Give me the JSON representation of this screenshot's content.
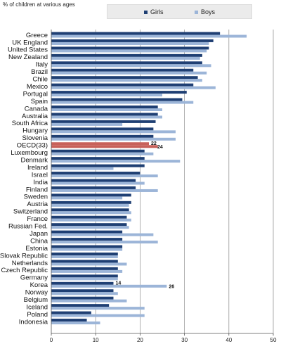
{
  "chart_data": {
    "type": "bar",
    "orientation": "horizontal",
    "subtitle": "% of children at various ages",
    "categories": [
      "Greece",
      "UK England",
      "United States",
      "New Zealand",
      "Italy",
      "Brazil",
      "Chile",
      "Mexico",
      "Portugal",
      "Spain",
      "Canada",
      "Australia",
      "South Africa",
      "Hungary",
      "Slovenia",
      "OECD(33)",
      "Luxembourg",
      "Denmark",
      "Ireland",
      "Israel",
      "India",
      "Finland",
      "Sweden",
      "Austria",
      "Switzerland",
      "France",
      "Russian Fed.",
      "Japan",
      "China",
      "Estonia",
      "Slovak Republic",
      "Netherlands",
      "Czech Republic",
      "Germany",
      "Korea",
      "Norway",
      "Belgium",
      "Iceland",
      "Poland",
      "Indonesia"
    ],
    "series": [
      {
        "name": "Girls",
        "color": "#1f3f73",
        "values": [
          38,
          36.5,
          35.5,
          34,
          34,
          32,
          33,
          32,
          30.5,
          29.5,
          24,
          24,
          23.5,
          23,
          23,
          22,
          21,
          21,
          21,
          20,
          19,
          19,
          18,
          18,
          17.5,
          17,
          17,
          16,
          16,
          16,
          15,
          15,
          15,
          15,
          14,
          14,
          14,
          13,
          9,
          8
        ]
      },
      {
        "name": "Boys",
        "color": "#9cb5d8",
        "values": [
          44,
          35.5,
          35,
          33.5,
          36,
          35,
          34,
          37,
          25,
          32,
          25,
          25,
          16,
          28,
          28,
          24,
          23,
          29,
          14,
          24,
          21,
          24,
          16,
          17.5,
          18,
          18,
          17.5,
          23,
          24,
          16,
          15,
          17,
          16,
          15,
          26,
          15,
          17,
          21,
          21,
          11
        ]
      }
    ],
    "highlight_category": "OECD(33)",
    "highlight_color": "#c8615a",
    "data_labels": [
      {
        "category": "OECD(33)",
        "series": "Girls",
        "text": "22"
      },
      {
        "category": "OECD(33)",
        "series": "Boys",
        "text": "24"
      },
      {
        "category": "Korea",
        "series": "Girls",
        "text": "14"
      },
      {
        "category": "Korea",
        "series": "Boys",
        "text": "26"
      }
    ],
    "xlim": [
      0,
      50
    ],
    "xticks": [
      "0",
      "10",
      "20",
      "30",
      "40",
      "50"
    ],
    "grid": true,
    "legend_position": "top"
  }
}
